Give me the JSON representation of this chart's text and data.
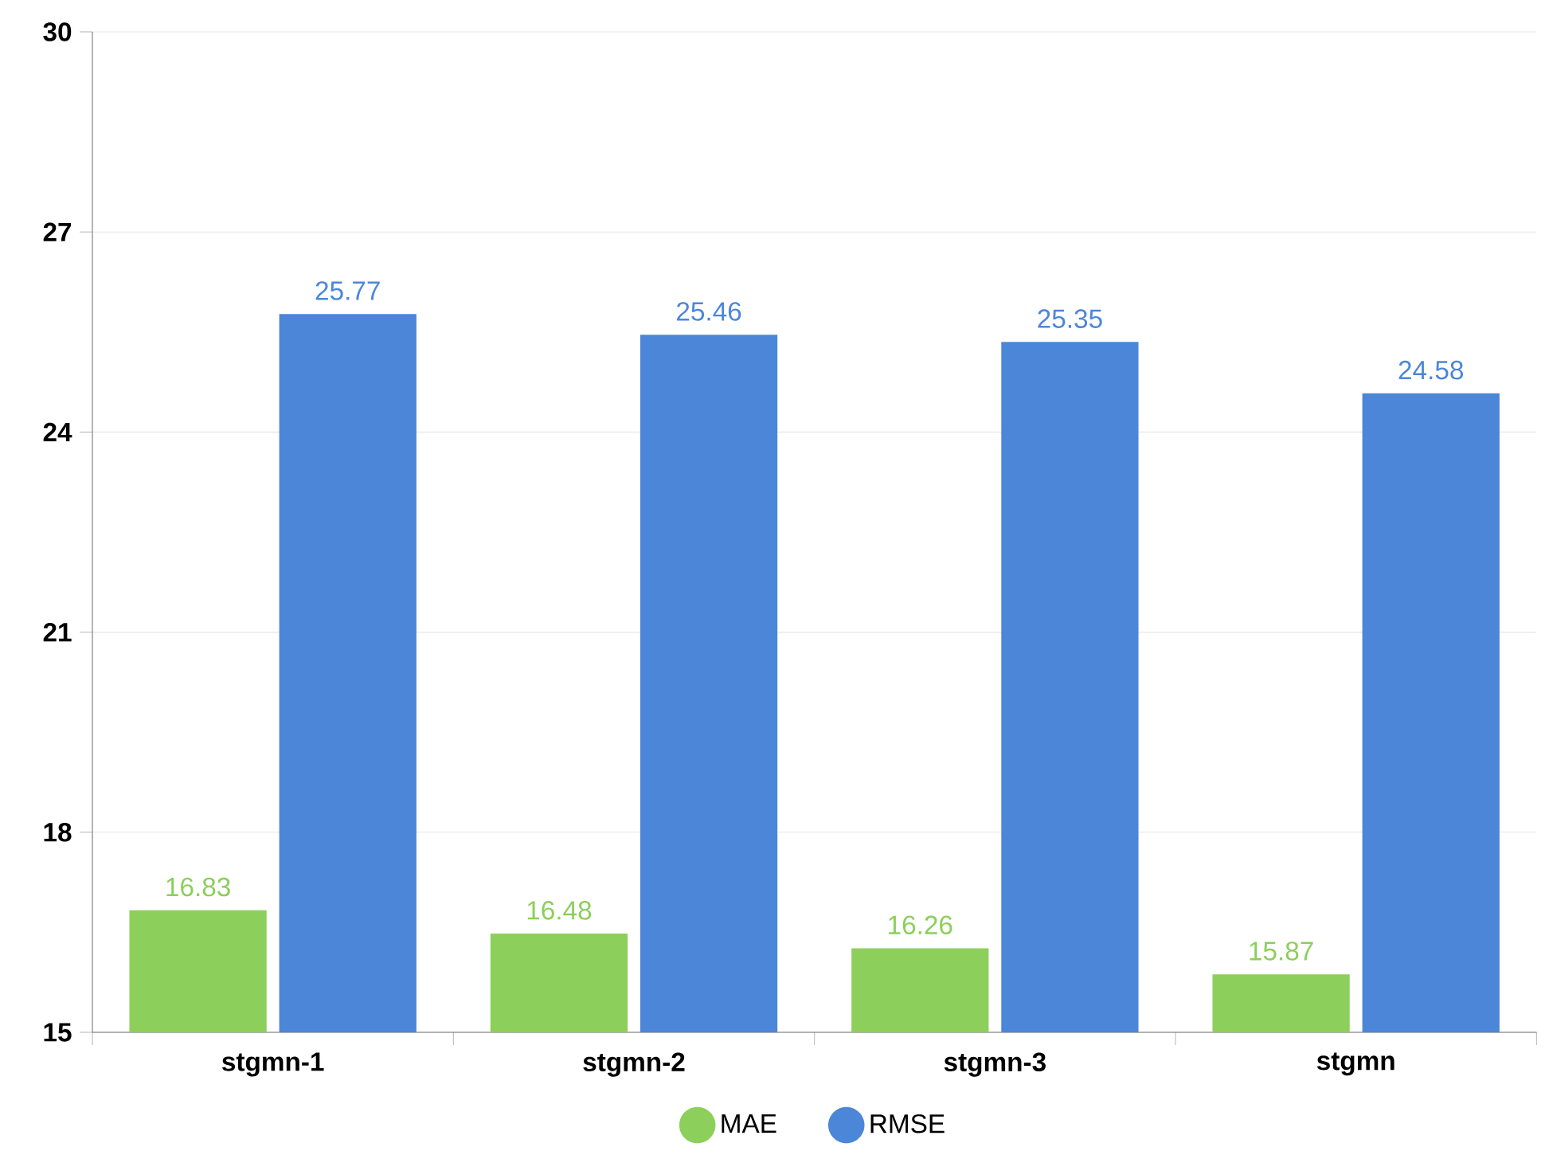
{
  "chart_data": {
    "type": "bar",
    "categories": [
      "stgmn-1",
      "stgmn-2",
      "stgmn-3",
      "stgmn"
    ],
    "series": [
      {
        "name": "MAE",
        "color": "#8ccf5a",
        "values": [
          16.83,
          16.48,
          16.26,
          15.87
        ]
      },
      {
        "name": "RMSE",
        "color": "#4c86d9",
        "values": [
          25.77,
          25.46,
          25.35,
          24.58
        ]
      }
    ],
    "ylim": [
      15,
      30
    ],
    "yticks": [
      15,
      18,
      21,
      24,
      27,
      30
    ],
    "grid": "y",
    "legend": "bottom",
    "data_labels": true
  }
}
